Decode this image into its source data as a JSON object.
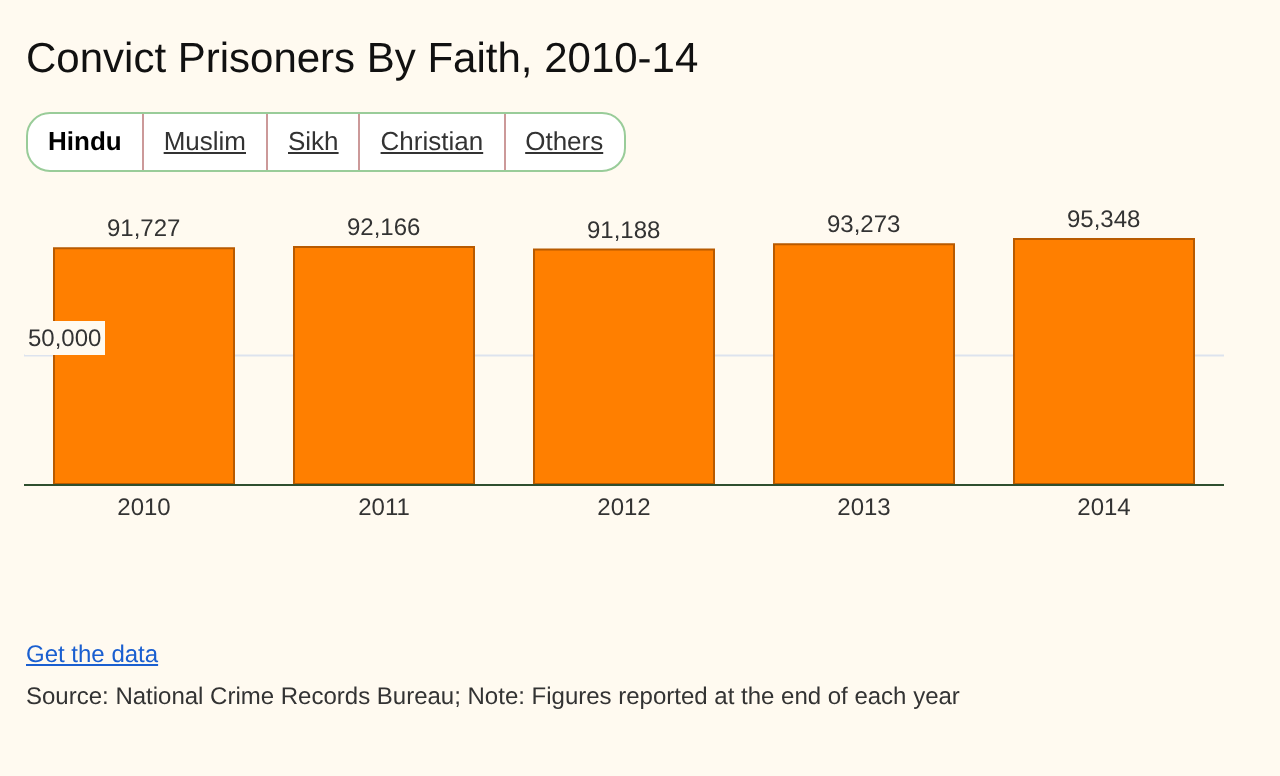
{
  "chart_data": {
    "type": "bar",
    "title": "Convict Prisoners By Faith, 2010-14",
    "categories": [
      "2010",
      "2011",
      "2012",
      "2013",
      "2014"
    ],
    "values": [
      91727,
      92166,
      91188,
      93273,
      95348
    ],
    "color": "#ff7f00",
    "value_labels": [
      "91,727",
      "92,166",
      "91,188",
      "93,273",
      "95,348"
    ],
    "ref_lines": [
      {
        "axis": "y",
        "value": 50000,
        "label": "50,000",
        "color": "#dde3ee"
      }
    ],
    "annotations": [
      "Hindu",
      "Muslim",
      "Sikh",
      "Christian",
      "Others",
      "Get the data",
      "Source: National Crime Records Bureau; Note: Figures reported at the end of each year"
    ]
  }
}
